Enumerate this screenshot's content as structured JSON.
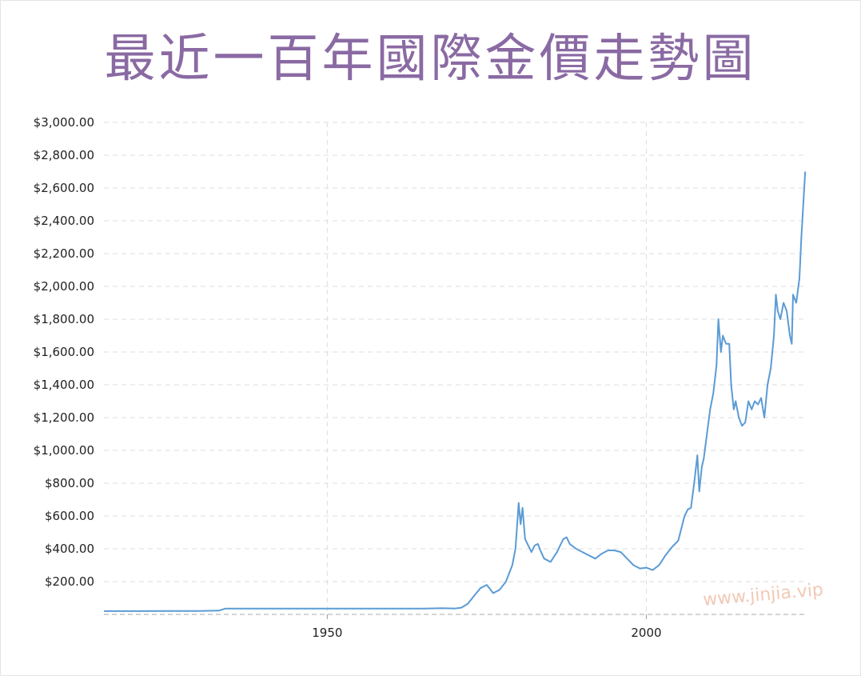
{
  "chart_data": {
    "type": "line",
    "title": "最近一百年國際金價走勢圖",
    "xlabel": "",
    "ylabel": "",
    "xlim": [
      1915,
      2025
    ],
    "ylim": [
      0,
      3000
    ],
    "yticks": [
      {
        "value": 3000,
        "label": "$3,000.00"
      },
      {
        "value": 2800,
        "label": "$2,800.00"
      },
      {
        "value": 2600,
        "label": "$2,600.00"
      },
      {
        "value": 2400,
        "label": "$2,400.00"
      },
      {
        "value": 2200,
        "label": "$2,200.00"
      },
      {
        "value": 2000,
        "label": "$2,000.00"
      },
      {
        "value": 1800,
        "label": "$1,800.00"
      },
      {
        "value": 1600,
        "label": "$1,600.00"
      },
      {
        "value": 1400,
        "label": "$1,400.00"
      },
      {
        "value": 1200,
        "label": "$1,200.00"
      },
      {
        "value": 1000,
        "label": "$1,000.00"
      },
      {
        "value": 800,
        "label": "$800.00"
      },
      {
        "value": 600,
        "label": "$600.00"
      },
      {
        "value": 400,
        "label": "$400.00"
      },
      {
        "value": 200,
        "label": "$200.00"
      }
    ],
    "xticks": [
      {
        "value": 1950,
        "label": "1950"
      },
      {
        "value": 2000,
        "label": "2000"
      }
    ],
    "grid": true,
    "line_color": "#5b9bd5",
    "series": [
      {
        "x": [
          1915,
          1920,
          1925,
          1930,
          1933,
          1934,
          1940,
          1945,
          1950,
          1955,
          1960,
          1965,
          1968,
          1970,
          1971,
          1972,
          1973,
          1974,
          1975,
          1976,
          1977,
          1978,
          1979,
          1979.5,
          1980,
          1980.3,
          1980.6,
          1981,
          1981.5,
          1982,
          1982.5,
          1983,
          1983.5,
          1984,
          1985,
          1986,
          1987,
          1987.5,
          1988,
          1989,
          1990,
          1991,
          1992,
          1993,
          1994,
          1995,
          1996,
          1997,
          1998,
          1999,
          2000,
          2001,
          2002,
          2003,
          2004,
          2005,
          2006,
          2006.5,
          2007,
          2007.5,
          2008,
          2008.3,
          2008.7,
          2009,
          2009.5,
          2010,
          2010.5,
          2011,
          2011.3,
          2011.7,
          2012,
          2012.5,
          2013,
          2013.3,
          2013.7,
          2014,
          2014.5,
          2015,
          2015.5,
          2016,
          2016.5,
          2017,
          2017.5,
          2018,
          2018.5,
          2019,
          2019.5,
          2020,
          2020.3,
          2020.6,
          2021,
          2021.5,
          2022,
          2022.5,
          2022.8,
          2023,
          2023.5,
          2024,
          2024.3,
          2024.6,
          2024.9
        ],
        "values": [
          20,
          20,
          21,
          21,
          23,
          35,
          35,
          35,
          35,
          35,
          35,
          35,
          38,
          36,
          41,
          64,
          112,
          160,
          180,
          130,
          150,
          200,
          300,
          400,
          680,
          550,
          650,
          460,
          420,
          380,
          420,
          430,
          380,
          340,
          320,
          380,
          460,
          470,
          430,
          400,
          380,
          360,
          340,
          370,
          390,
          390,
          380,
          340,
          300,
          280,
          285,
          270,
          300,
          360,
          410,
          450,
          600,
          640,
          650,
          800,
          970,
          750,
          900,
          950,
          1100,
          1250,
          1350,
          1520,
          1800,
          1600,
          1700,
          1650,
          1650,
          1400,
          1250,
          1300,
          1200,
          1150,
          1170,
          1300,
          1250,
          1300,
          1280,
          1320,
          1200,
          1400,
          1500,
          1700,
          1950,
          1850,
          1800,
          1900,
          1850,
          1700,
          1650,
          1950,
          1900,
          2050,
          2300,
          2500,
          2700
        ]
      }
    ]
  },
  "watermark": {
    "text": "www.jinjia.vip"
  }
}
